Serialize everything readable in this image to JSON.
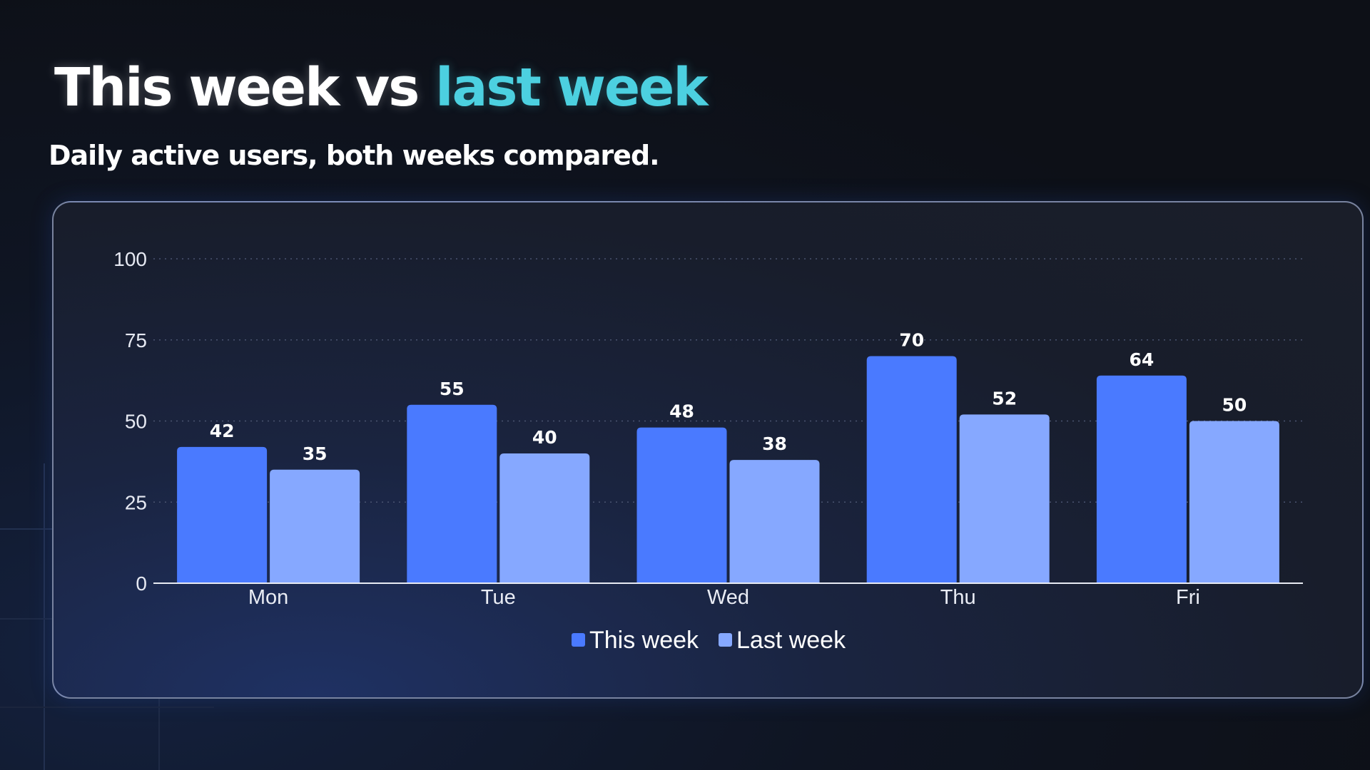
{
  "header": {
    "title_main": "This week vs ",
    "title_accent": "last week",
    "subtitle": "Daily active users, both weeks compared."
  },
  "colors": {
    "accent": "#4cd0e0",
    "this_week": "#4a7aff",
    "last_week": "#86a8ff"
  },
  "chart_data": {
    "type": "bar",
    "categories": [
      "Mon",
      "Tue",
      "Wed",
      "Thu",
      "Fri"
    ],
    "series": [
      {
        "name": "This week",
        "values": [
          42,
          55,
          48,
          70,
          64
        ],
        "color": "#4a7aff"
      },
      {
        "name": "Last week",
        "values": [
          35,
          40,
          38,
          52,
          50
        ],
        "color": "#86a8ff"
      }
    ],
    "title": "This week vs last week",
    "subtitle": "Daily active users, both weeks compared.",
    "ylim": [
      0,
      100
    ],
    "yticks": [
      0,
      25,
      50,
      75,
      100
    ],
    "grid": true,
    "legend": "bottom-center",
    "data_labels": true
  }
}
